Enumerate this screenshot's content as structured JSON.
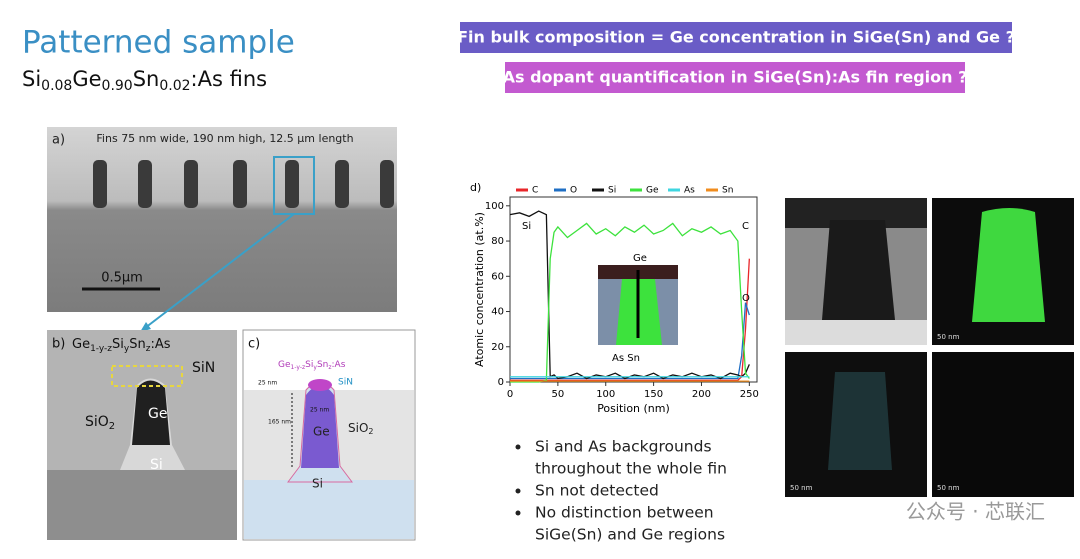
{
  "title": "Patterned sample",
  "subtitle": [
    "Si",
    "0.08",
    "Ge",
    "0.90",
    "Sn",
    "0.02",
    ":As fins"
  ],
  "banners": [
    "Fin bulk composition = Ge concentration in SiGe(Sn) and Ge ?",
    "As dopant quantification in SiGe(Sn):As fin region ?"
  ],
  "panel_a": {
    "label": "a)",
    "caption": "Fins 75 nm wide, 190 nm high, 12.5 µm length",
    "scale": "0.5µm"
  },
  "panel_b": {
    "label": "b)",
    "formula": [
      "Ge",
      "1-y-z",
      "Si",
      "y",
      "Sn",
      "z",
      ":As"
    ],
    "sin": "SiN",
    "sio2": [
      "SiO",
      "2"
    ],
    "ge": "Ge",
    "si": "Si"
  },
  "panel_c": {
    "label": "c)",
    "formula": [
      "Ge",
      "1-y-z",
      "Si",
      "y",
      "Sn",
      "z",
      ":As"
    ],
    "sin": "SiN",
    "top": "25 nm",
    "height": "165 nm",
    "width": "25 nm",
    "ge": "Ge",
    "sio2": [
      "SiO",
      "2"
    ],
    "si": "Si"
  },
  "chart_data": {
    "type": "line",
    "panel_label": "d)",
    "x_label": "Position (nm)",
    "y_label": "Atomic concentration (at.%)",
    "x": [
      0,
      10,
      20,
      30,
      38,
      42,
      46,
      50,
      60,
      70,
      80,
      90,
      100,
      110,
      120,
      130,
      140,
      150,
      160,
      170,
      180,
      190,
      200,
      210,
      220,
      230,
      238,
      242,
      246,
      250
    ],
    "series": [
      {
        "name": "C",
        "color": "#e8262a",
        "values": [
          1,
          1,
          1,
          1,
          1,
          1,
          1,
          1,
          1,
          1,
          1,
          1,
          1,
          1,
          1,
          1,
          1,
          1,
          1,
          1,
          1,
          1,
          1,
          1,
          1,
          1,
          1,
          3,
          30,
          70
        ]
      },
      {
        "name": "O",
        "color": "#1f6fc4",
        "values": [
          2,
          2,
          2,
          2,
          2,
          2,
          2,
          2,
          2,
          2,
          2,
          2,
          2,
          2,
          2,
          2,
          2,
          2,
          2,
          2,
          2,
          2,
          2,
          2,
          2,
          2,
          2,
          15,
          45,
          38
        ]
      },
      {
        "name": "Si",
        "color": "#111111",
        "values": [
          95,
          96,
          94,
          97,
          95,
          3,
          4,
          2,
          3,
          5,
          2,
          4,
          3,
          5,
          2,
          4,
          3,
          5,
          2,
          4,
          3,
          5,
          3,
          4,
          2,
          5,
          4,
          3,
          5,
          10
        ]
      },
      {
        "name": "Ge",
        "color": "#3de23d",
        "values": [
          0,
          0,
          0,
          0,
          1,
          70,
          85,
          88,
          82,
          86,
          90,
          84,
          87,
          83,
          88,
          85,
          89,
          84,
          86,
          90,
          83,
          87,
          85,
          88,
          84,
          86,
          80,
          40,
          5,
          2
        ]
      },
      {
        "name": "As",
        "color": "#3fd6e0",
        "values": [
          3,
          3,
          3,
          3,
          3,
          3,
          3,
          3,
          3,
          3,
          3,
          3,
          3,
          3,
          3,
          3,
          3,
          3,
          3,
          3,
          3,
          3,
          3,
          3,
          3,
          3,
          3,
          3,
          3,
          3
        ]
      },
      {
        "name": "Sn",
        "color": "#f08c1e",
        "values": [
          0.5,
          0.5,
          0.5,
          0.5,
          0.5,
          0.5,
          0.5,
          0.5,
          0.5,
          0.5,
          0.5,
          0.5,
          0.5,
          0.5,
          0.5,
          0.5,
          0.5,
          0.5,
          0.5,
          0.5,
          0.5,
          0.5,
          0.5,
          0.5,
          0.5,
          0.5,
          0.5,
          0.5,
          0.5,
          0.5
        ]
      }
    ],
    "xlim": [
      0,
      258
    ],
    "ylim": [
      0,
      105
    ],
    "xticks": [
      0,
      50,
      100,
      150,
      200,
      250
    ],
    "yticks": [
      0,
      20,
      40,
      60,
      80,
      100
    ],
    "annotations": [
      "Si",
      "Ge",
      "As Sn",
      "C",
      "O"
    ]
  },
  "bullets": [
    [
      "Si and As backgrounds",
      "throughout the whole fin"
    ],
    [
      "Sn not detected"
    ],
    [
      "No distinction between",
      "SiGe(Sn) and Ge regions"
    ]
  ],
  "map_scale": "50 nm",
  "watermark": "公众号 · 芯联汇"
}
